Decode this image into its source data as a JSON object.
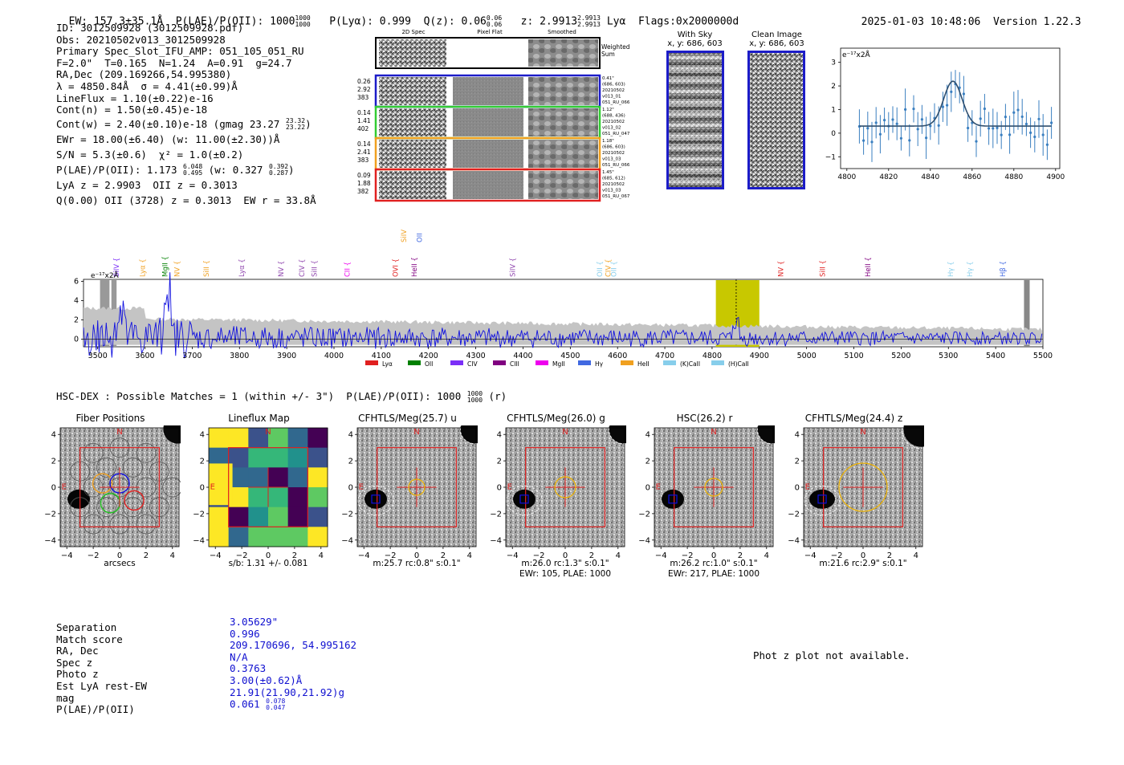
{
  "header": {
    "ew": "EW: 157.3±35.1Å",
    "plae_label": "P(LAE)/P(OII): 1000",
    "plae_hi": "1000",
    "plae_lo": "1000",
    "plya": "P(Lyα): 0.999",
    "qz": "Q(z): 0.06",
    "qz_hi": "0.06",
    "qz_lo": "0.06",
    "z": "z: 2.9913",
    "z_hi": "2.9913",
    "z_lo": "2.9913",
    "line": "Lyα",
    "flags": "Flags:0x2000000d",
    "datetime": "2025-01-03 10:48:06",
    "version": "Version 1.22.3"
  },
  "info": {
    "id": "ID: 3012509928 (3012509928.pdf)",
    "obs": "Obs: 20210502v013_3012509928",
    "primary": "Primary Spec_Slot_IFU_AMP: 051_105_051_RU",
    "fit": "F=2.0\"  T=0.165  N=1.24  A=0.91  g=24.7",
    "radec": "RA,Dec (209.169266,54.995380)",
    "lambda": "λ = 4850.84Å  σ = 4.41(±0.99)Å",
    "lineflux": "LineFlux = 1.10(±0.22)e-16",
    "contn": "Cont(n) = 1.50(±0.45)e-18",
    "contw": "Cont(w) = 2.40(±0.10)e-18 (gmag 23.27",
    "contw_hi": "23.32",
    "contw_lo": "23.22",
    "contw_end": ")",
    "ewr": "EWr = 18.00(±6.40) (w: 11.00(±2.30))Å",
    "sn": "S/N = 5.3(±0.6)  χ² = 1.0(±0.2)",
    "plae": "P(LAE)/P(OII): 1.173",
    "plae_hi": "6.048",
    "plae_lo": "0.495",
    "plae_w": " (w: 0.327",
    "plae_w_hi": "0.392",
    "plae_w_lo": "0.287",
    "plae_end": ")",
    "lyaz": "LyA z = 2.9903  OII z = 0.3013",
    "q": "Q(0.00) OII (3728) z = 0.3013  EW r = 33.8Å"
  },
  "cutouts": {
    "col_titles": [
      "2D Spec",
      "Pixel Flat",
      "Smoothed"
    ],
    "weighted_sum": "Weighted Sum",
    "rows": [
      {
        "left": [
          "0.26",
          "2.92",
          "383"
        ],
        "right": [
          "0.41\"",
          "(686, 603)",
          "20210502",
          "v013_01",
          "051_RU_066"
        ],
        "color": "#1c1cc8"
      },
      {
        "left": [
          "0.14",
          "1.41",
          "402"
        ],
        "right": [
          "1.12\"",
          "(688, 436)",
          "20210502",
          "v013_02",
          "051_RU_047"
        ],
        "color": "#33cc33"
      },
      {
        "left": [
          "0.14",
          "2.41",
          "383"
        ],
        "right": [
          "1.18\"",
          "(686, 603)",
          "20210502",
          "v013_03",
          "051_RU_066"
        ],
        "color": "#f0a020"
      },
      {
        "left": [
          "0.09",
          "1.88",
          "382"
        ],
        "right": [
          "1.45\"",
          "(685, 612)",
          "20210502",
          "v013_03",
          "051_RU_067"
        ],
        "color": "#e02020"
      }
    ]
  },
  "sky": {
    "with_sky_title": "With Sky",
    "with_sky_sub": "x, y: 686, 603",
    "clean_title": "Clean Image",
    "clean_sub": "x, y: 686, 603"
  },
  "zoom_plot": {
    "unit_label": "e⁻¹⁷x2Å",
    "xticks": [
      "4800",
      "4820",
      "4840",
      "4860",
      "4880",
      "4900"
    ],
    "yticks": [
      "3",
      "2",
      "1",
      "0",
      "−1"
    ]
  },
  "spectrum": {
    "unit_label": "e⁻¹⁷x2Å",
    "xticks": [
      "3500",
      "3600",
      "3700",
      "3800",
      "3900",
      "4000",
      "4100",
      "4200",
      "4300",
      "4400",
      "4500",
      "4600",
      "4700",
      "4800",
      "4900",
      "5000",
      "5100",
      "5200",
      "5300",
      "5400",
      "5500"
    ],
    "yticks": [
      "6",
      "4",
      "2",
      "0"
    ],
    "lines": [
      {
        "name": "SiIV",
        "color": "#7b2ff7",
        "w": 3540
      },
      {
        "name": "Lyα",
        "color": "#f0a020",
        "w": 3595
      },
      {
        "name": "MgII",
        "color": "#008000",
        "w": 3642
      },
      {
        "name": "NV",
        "color": "#f0a020",
        "w": 3668
      },
      {
        "name": "SiII",
        "color": "#f0a020",
        "w": 3730
      },
      {
        "name": "Lyα",
        "color": "#8e44ad",
        "w": 3805
      },
      {
        "name": "NV",
        "color": "#8e44ad",
        "w": 3888
      },
      {
        "name": "CIV",
        "color": "#8e44ad",
        "w": 3932
      },
      {
        "name": "SiII",
        "color": "#8e44ad",
        "w": 3958
      },
      {
        "name": "CII",
        "color": "#ee00ee",
        "w": 4028
      },
      {
        "name": "OVI",
        "color": "#e02020",
        "w": 4130
      },
      {
        "name": "HeII",
        "color": "#800080",
        "w": 4170
      },
      {
        "name": "SiIV",
        "color": "#8e44ad",
        "w": 4378
      },
      {
        "name": "OII",
        "color": "#87ceeb",
        "w": 4562
      },
      {
        "name": "CIV",
        "color": "#f0a020",
        "w": 4580
      },
      {
        "name": "OII",
        "color": "#87ceeb",
        "w": 4592
      },
      {
        "name": "NV",
        "color": "#e02020",
        "w": 4945
      },
      {
        "name": "SiII",
        "color": "#e02020",
        "w": 5034
      },
      {
        "name": "HeII",
        "color": "#800080",
        "w": 5130
      },
      {
        "name": "Hγ",
        "color": "#87ceeb",
        "w": 5305
      },
      {
        "name": "Hγ",
        "color": "#87ceeb",
        "w": 5345
      },
      {
        "name": "Hβ",
        "color": "#4169e1",
        "w": 5415
      }
    ],
    "upper_lines": [
      {
        "name": "SiIV",
        "color": "#f0a020",
        "w": 4148
      },
      {
        "name": "OII",
        "color": "#4169e1",
        "w": 4181
      }
    ],
    "legend": [
      {
        "name": "Lyα",
        "color": "#e02020"
      },
      {
        "name": "OII",
        "color": "#008000"
      },
      {
        "name": "CIV",
        "color": "#7b2ff7"
      },
      {
        "name": "CIII",
        "color": "#800080"
      },
      {
        "name": "MgII",
        "color": "#ee00ee"
      },
      {
        "name": "Hγ",
        "color": "#4169e1"
      },
      {
        "name": "HeII",
        "color": "#f0a020"
      },
      {
        "name": "(K)CaII",
        "color": "#87ceeb"
      },
      {
        "name": "(H)CaII",
        "color": "#87ceeb"
      }
    ]
  },
  "hsc": {
    "title": "HSC-DEX : Possible Matches = 1 (within +/- 3\")  P(LAE)/P(OII): 1000",
    "title_hi": "1000",
    "title_lo": "1000",
    "title_end": " (r)",
    "panels": [
      {
        "title": "Fiber Positions",
        "foot1": "arcsecs",
        "foot2": ""
      },
      {
        "title": "Lineflux Map",
        "foot1": "s/b: 1.31 +/- 0.081",
        "foot2": ""
      },
      {
        "title": "CFHTLS/Meg(25.7) u",
        "foot1": "m:25.7 rc:0.8\"  s:0.1\"",
        "foot2": ""
      },
      {
        "title": "CFHTLS/Meg(26.0) g",
        "foot1": "m:26.0 rc:1.3\"  s:0.1\"",
        "foot2": "EWr: 105, PLAE: 1000"
      },
      {
        "title": "HSC(26.2) r",
        "foot1": "m:26.2 rc:1.0\"  s:0.1\"",
        "foot2": "EWr: 217, PLAE: 1000"
      },
      {
        "title": "CFHTLS/Meg(24.4) z",
        "foot1": "m:21.6 rc:2.9\"  s:0.1\"",
        "foot2": ""
      }
    ],
    "axis_ticks": [
      "4",
      "2",
      "0",
      "−2",
      "−4"
    ],
    "x_ticks": [
      "−4",
      "−2",
      "0",
      "2",
      "4"
    ],
    "north": "N",
    "east": "E"
  },
  "match": {
    "labels": [
      "Separation",
      "Match score",
      "RA, Dec",
      "Spec z",
      "Photo z",
      "Est LyA rest-EW",
      "mag",
      "P(LAE)/P(OII)"
    ],
    "values": [
      "3.05629\"",
      "0.996",
      "209.170696, 54.995162",
      "N/A",
      "0.3763",
      "3.00(±0.62)Å",
      "21.91(21.90,21.92)g",
      "0.061"
    ],
    "plae_hi": "0.078",
    "plae_lo": "0.047",
    "photz_msg": "Phot z plot not available."
  }
}
